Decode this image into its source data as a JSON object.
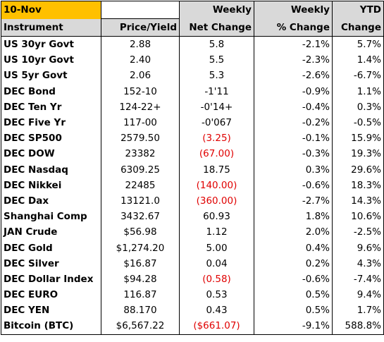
{
  "header": {
    "date": "10-Nov",
    "row1": [
      "",
      "Weekly",
      "Weekly",
      "YTD"
    ],
    "row2": [
      "Instrument",
      "Price/Yield",
      "Net Change",
      "% Change",
      "Change"
    ]
  },
  "rows": [
    {
      "instrument": "US 30yr Govt",
      "price": "2.88",
      "net": "5.8",
      "pct": "-2.1%",
      "ytd": "5.7%",
      "net_neg": false
    },
    {
      "instrument": "US 10yr Govt",
      "price": "2.40",
      "net": "5.5",
      "pct": "-2.3%",
      "ytd": "1.4%",
      "net_neg": false
    },
    {
      "instrument": "US 5yr   Govt",
      "price": "2.06",
      "net": "5.3",
      "pct": "-2.6%",
      "ytd": "-6.7%",
      "net_neg": false
    },
    {
      "instrument": "DEC Bond",
      "price": "152-10",
      "net": "-1'11",
      "pct": "-0.9%",
      "ytd": "1.1%",
      "net_neg": false
    },
    {
      "instrument": "DEC Ten Yr",
      "price": "124-22+",
      "net": "-0'14+",
      "pct": "-0.4%",
      "ytd": "0.3%",
      "net_neg": false
    },
    {
      "instrument": "DEC Five Yr",
      "price": "117-00",
      "net": "-0'067",
      "pct": "-0.2%",
      "ytd": "-0.5%",
      "net_neg": false
    },
    {
      "instrument": "DEC SP500",
      "price": "2579.50",
      "net": "(3.25)",
      "pct": "-0.1%",
      "ytd": "15.9%",
      "net_neg": true
    },
    {
      "instrument": "DEC DOW",
      "price": "23382",
      "net": "(67.00)",
      "pct": "-0.3%",
      "ytd": "19.3%",
      "net_neg": true
    },
    {
      "instrument": "DEC Nasdaq",
      "price": "6309.25",
      "net": "18.75",
      "pct": "0.3%",
      "ytd": "29.6%",
      "net_neg": false
    },
    {
      "instrument": "DEC Nikkei",
      "price": "22485",
      "net": "(140.00)",
      "pct": "-0.6%",
      "ytd": "18.3%",
      "net_neg": true
    },
    {
      "instrument": "DEC Dax",
      "price": "13121.0",
      "net": "(360.00)",
      "pct": "-2.7%",
      "ytd": "14.3%",
      "net_neg": true
    },
    {
      "instrument": "Shanghai Comp",
      "price": "3432.67",
      "net": "60.93",
      "pct": "1.8%",
      "ytd": "10.6%",
      "net_neg": false
    },
    {
      "instrument": "JAN Crude",
      "price": "$56.98",
      "net": "1.12",
      "pct": "2.0%",
      "ytd": "-2.5%",
      "net_neg": false
    },
    {
      "instrument": "DEC Gold",
      "price": "$1,274.20",
      "net": "5.00",
      "pct": "0.4%",
      "ytd": "9.6%",
      "net_neg": false
    },
    {
      "instrument": "DEC Silver",
      "price": "$16.87",
      "net": "0.04",
      "pct": "0.2%",
      "ytd": "4.3%",
      "net_neg": false
    },
    {
      "instrument": "DEC Dollar Index",
      "price": "$94.28",
      "net": "(0.58)",
      "pct": "-0.6%",
      "ytd": "-7.4%",
      "net_neg": true
    },
    {
      "instrument": "DEC EURO",
      "price": "116.87",
      "net": "0.53",
      "pct": "0.5%",
      "ytd": "9.4%",
      "net_neg": false
    },
    {
      "instrument": "DEC YEN",
      "price": "88.170",
      "net": "0.43",
      "pct": "0.5%",
      "ytd": "1.7%",
      "net_neg": false
    },
    {
      "instrument": "Bitcoin (BTC)",
      "price": "$6,567.22",
      "net": "($661.07)",
      "pct": "-9.1%",
      "ytd": "588.8%",
      "net_neg": true
    }
  ],
  "colors": {
    "date_fill": "#ffc000",
    "header_fill": "#d9d9d9",
    "negative": "#e00000"
  }
}
